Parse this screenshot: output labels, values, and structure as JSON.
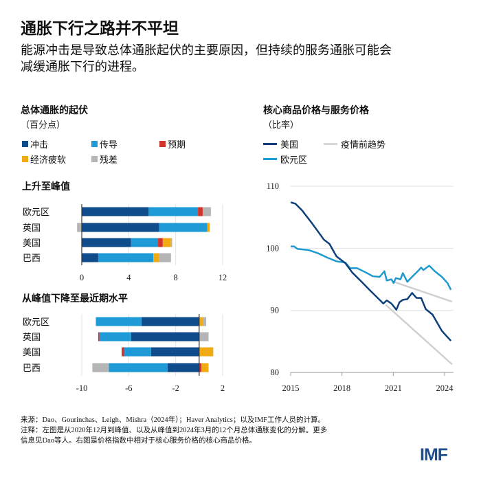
{
  "header": {
    "title": "通胀下行之路并不平坦",
    "subtitle_line1": "能源冲击是导致总体通胀起伏的主要原因，但持续的服务通胀可能会",
    "subtitle_line2": "减缓通胀下行的进程。"
  },
  "footer": {
    "source": "来源：Dao、Gourinchas、Leigh、Mishra（2024年）；Haver Analytics；以及IMF工作人员的计算。",
    "note_line1": "注释：左图是从2020年12月到峰值、以及从峰值到2024年3月的12个月总体通胀变化的分解。更多",
    "note_line2": "信息见Dao等人。右图是价格指数中相对于核心服务价格的核心商品价格。",
    "logo": "IMF"
  },
  "chart_data": [
    {
      "type": "bar",
      "orientation": "horizontal",
      "stacked": true,
      "title": "总体通胀的起伏",
      "unit": "（百分点）",
      "legend": [
        {
          "name": "冲击",
          "color": "#0f4c8c"
        },
        {
          "name": "传导",
          "color": "#1e9bd7"
        },
        {
          "name": "预期",
          "color": "#d2332b"
        },
        {
          "name": "经济疲软",
          "color": "#f0ab12"
        },
        {
          "name": "残差",
          "color": "#b5b5b5"
        }
      ],
      "panels": [
        {
          "title": "上升至峰值",
          "categories": [
            "欧元区",
            "英国",
            "美国",
            "巴西"
          ],
          "xlim": [
            0,
            12
          ],
          "xticks": [
            "0",
            "4",
            "8",
            "12"
          ],
          "xtick_values": [
            0,
            4,
            8,
            12
          ],
          "series": [
            {
              "name": "冲击",
              "values": [
                5.7,
                6.6,
                4.2,
                1.4
              ]
            },
            {
              "name": "传导",
              "values": [
                4.2,
                4.1,
                2.3,
                4.7
              ]
            },
            {
              "name": "预期",
              "values": [
                0.4,
                0,
                0.4,
                0
              ]
            },
            {
              "name": "经济疲软",
              "values": [
                0,
                0.2,
                0.7,
                0.5
              ]
            },
            {
              "name": "残差",
              "values": [
                0.7,
                -0.4,
                0.1,
                1.0
              ]
            }
          ]
        },
        {
          "title": "从峰值下降至最近期水平",
          "categories": [
            "欧元区",
            "英国",
            "美国",
            "巴西"
          ],
          "xlim": [
            -10,
            2
          ],
          "xticks": [
            "-10",
            "-6",
            "-2",
            "2"
          ],
          "xtick_values": [
            -10,
            -6,
            -2,
            2
          ],
          "series": [
            {
              "name": "冲击",
              "values": [
                -4.9,
                -5.8,
                -4.1,
                -2.7
              ]
            },
            {
              "name": "传导",
              "values": [
                -3.9,
                -2.7,
                -2.3,
                -5.0
              ]
            },
            {
              "name": "预期",
              "values": [
                0,
                -0.1,
                -0.2,
                0.2
              ]
            },
            {
              "name": "经济疲软",
              "values": [
                0.3,
                0,
                1.2,
                0.6
              ]
            },
            {
              "name": "残差",
              "values": [
                0.3,
                0.8,
                0,
                -1.4
              ]
            }
          ]
        }
      ]
    },
    {
      "type": "line",
      "title": "核心商品价格与服务价格",
      "unit": "（比率）",
      "ylim": [
        80,
        110
      ],
      "yticks": [
        "80",
        "90",
        "100",
        "110"
      ],
      "ytick_values": [
        80,
        90,
        100,
        110
      ],
      "xlim": [
        2015,
        2024.5
      ],
      "xticks": [
        "2015",
        "2018",
        "2021",
        "2024"
      ],
      "xtick_values": [
        2015,
        2018,
        2021,
        2024
      ],
      "series": [
        {
          "name": "美国",
          "color": "#0d3f7a",
          "points": [
            [
              2015.0,
              107.4
            ],
            [
              2015.27,
              107.2
            ],
            [
              2015.67,
              106.1
            ],
            [
              2016.2,
              104.2
            ],
            [
              2016.6,
              102.7
            ],
            [
              2016.94,
              101.4
            ],
            [
              2017.27,
              100.7
            ],
            [
              2017.68,
              98.7
            ],
            [
              2018.2,
              97.6
            ],
            [
              2018.6,
              96.1
            ],
            [
              2019.15,
              94.6
            ],
            [
              2019.68,
              93.1
            ],
            [
              2020.09,
              92.0
            ],
            [
              2020.42,
              91.1
            ],
            [
              2020.62,
              91.6
            ],
            [
              2020.89,
              91.1
            ],
            [
              2021.18,
              90.1
            ],
            [
              2021.36,
              91.3
            ],
            [
              2021.56,
              91.7
            ],
            [
              2021.82,
              91.8
            ],
            [
              2022.1,
              92.8
            ],
            [
              2022.36,
              92.0
            ],
            [
              2022.63,
              92.0
            ],
            [
              2022.9,
              90.2
            ],
            [
              2023.3,
              89.3
            ],
            [
              2023.57,
              88.0
            ],
            [
              2023.84,
              86.7
            ],
            [
              2024.1,
              85.9
            ],
            [
              2024.37,
              85.1
            ]
          ]
        },
        {
          "name": "欧元区",
          "color": "#1e9ad0",
          "points": [
            [
              2015.0,
              100.3
            ],
            [
              2015.2,
              100.3
            ],
            [
              2015.4,
              99.9
            ],
            [
              2016.07,
              99.7
            ],
            [
              2016.6,
              99.2
            ],
            [
              2017.14,
              98.5
            ],
            [
              2017.68,
              97.9
            ],
            [
              2018.2,
              97.7
            ],
            [
              2018.47,
              96.8
            ],
            [
              2018.88,
              96.8
            ],
            [
              2019.4,
              96.1
            ],
            [
              2019.8,
              95.5
            ],
            [
              2020.2,
              95.4
            ],
            [
              2020.48,
              96.3
            ],
            [
              2020.62,
              94.8
            ],
            [
              2020.89,
              95.0
            ],
            [
              2021.02,
              94.4
            ],
            [
              2021.15,
              95.2
            ],
            [
              2021.42,
              95.0
            ],
            [
              2021.56,
              96.0
            ],
            [
              2021.82,
              94.6
            ],
            [
              2022.1,
              95.4
            ],
            [
              2022.5,
              96.5
            ],
            [
              2022.63,
              96.9
            ],
            [
              2022.76,
              96.5
            ],
            [
              2023.1,
              97.2
            ],
            [
              2023.43,
              96.3
            ],
            [
              2023.84,
              95.4
            ],
            [
              2024.17,
              94.4
            ],
            [
              2024.37,
              93.3
            ]
          ]
        },
        {
          "name": "疫情前趋势",
          "color": "#d0d0d0",
          "segments": [
            [
              [
                2020.56,
                90.9
              ],
              [
                2024.44,
                81.3
              ]
            ],
            [
              [
                2021.02,
                94.6
              ],
              [
                2024.44,
                91.4
              ]
            ]
          ]
        }
      ]
    }
  ]
}
